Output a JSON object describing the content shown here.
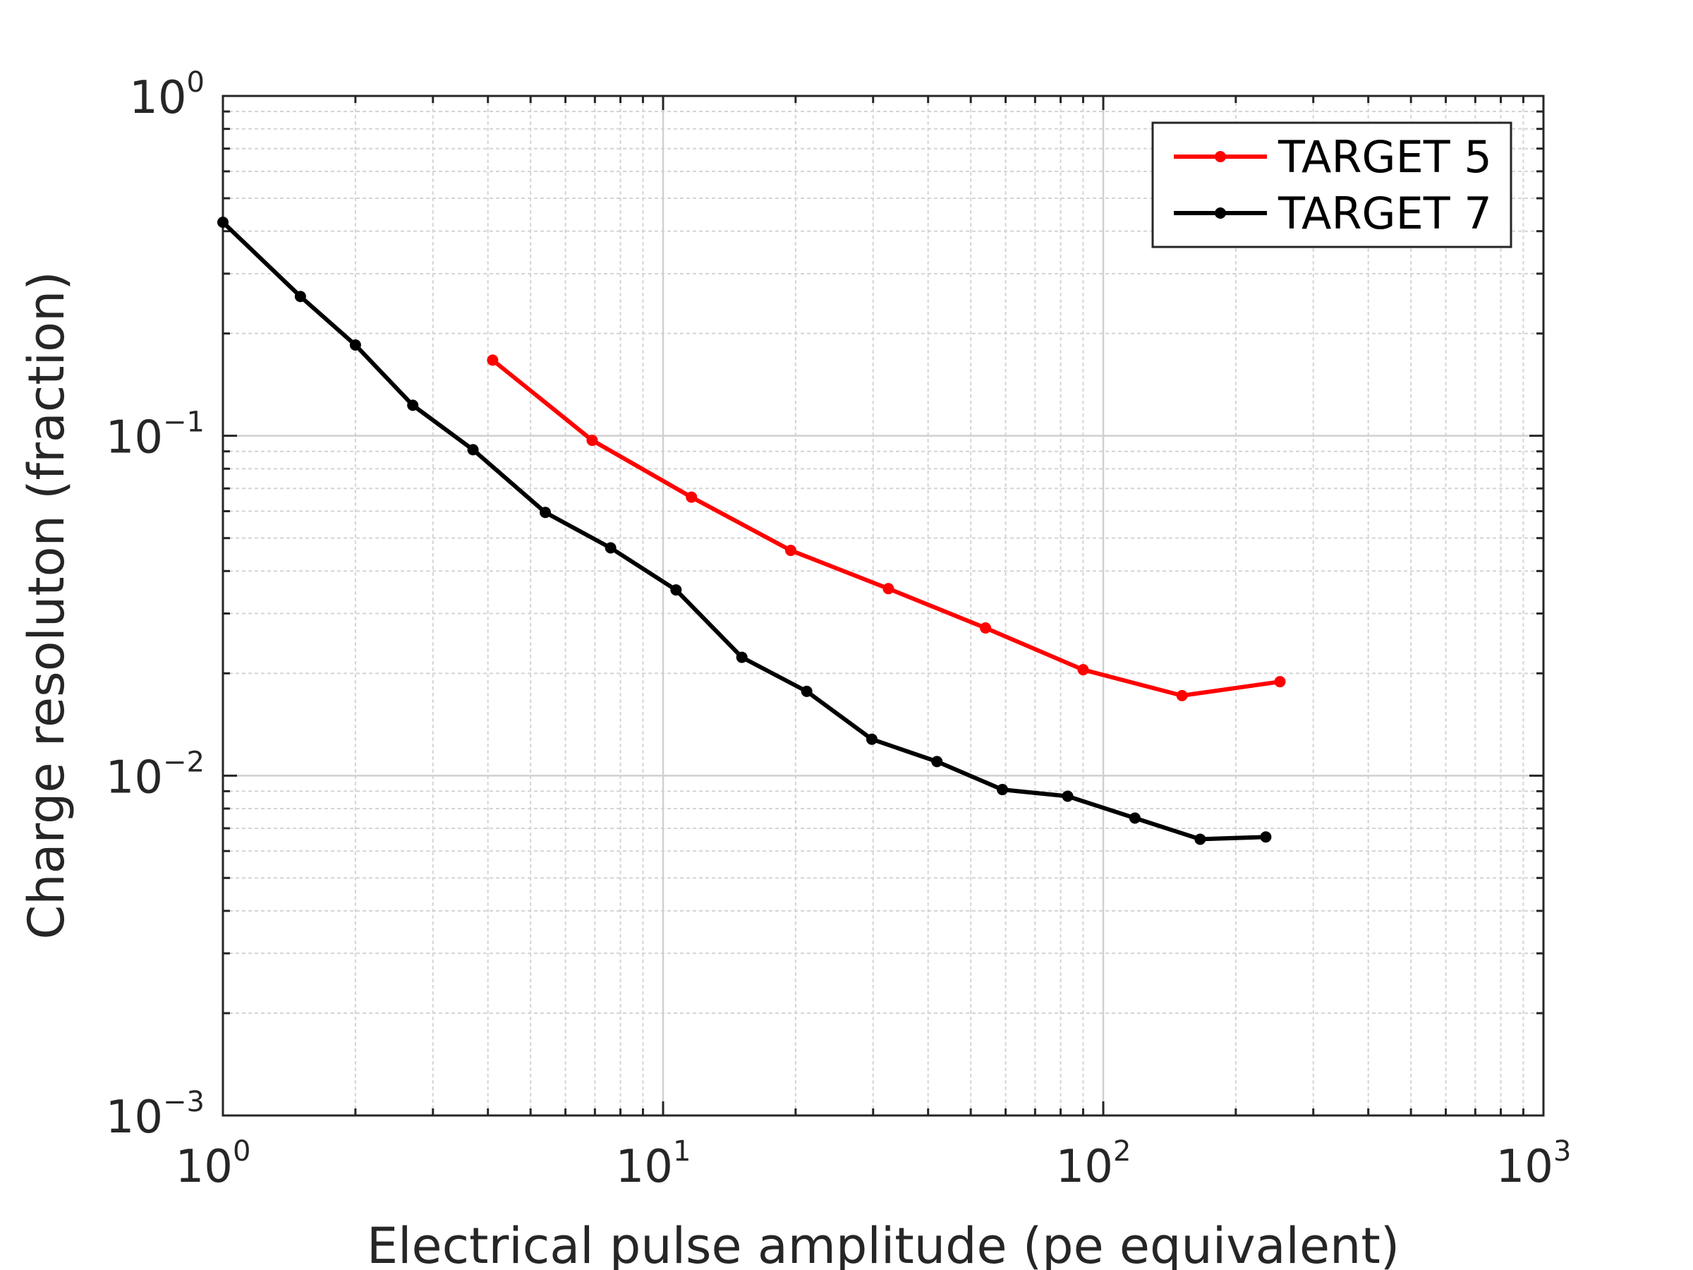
{
  "chart_data": {
    "type": "line",
    "title": "",
    "xlabel": "Electrical pulse amplitude (pe equivalent)",
    "ylabel": "Charge resoluton (fraction)",
    "x_scale": "log",
    "y_scale": "log",
    "xlim": [
      1,
      1000
    ],
    "ylim": [
      0.001,
      1
    ],
    "x_ticks": [
      {
        "base": "10",
        "exp": "0",
        "value": 1
      },
      {
        "base": "10",
        "exp": "1",
        "value": 10
      },
      {
        "base": "10",
        "exp": "2",
        "value": 100
      },
      {
        "base": "10",
        "exp": "3",
        "value": 1000
      }
    ],
    "y_ticks": [
      {
        "base": "10",
        "exp": "0",
        "value": 1
      },
      {
        "base": "10",
        "exp": "−1",
        "value": 0.1
      },
      {
        "base": "10",
        "exp": "−2",
        "value": 0.01
      },
      {
        "base": "10",
        "exp": "−3",
        "value": 0.001
      }
    ],
    "grid": true,
    "legend_position": "top-right",
    "series": [
      {
        "name": "TARGET 5",
        "color": "#ff0000",
        "points": [
          [
            4.1,
            0.167
          ],
          [
            6.9,
            0.097
          ],
          [
            11.6,
            0.066
          ],
          [
            19.5,
            0.046
          ],
          [
            32.5,
            0.0355
          ],
          [
            54,
            0.0272
          ],
          [
            90,
            0.0205
          ],
          [
            151,
            0.0172
          ],
          [
            252,
            0.0189
          ]
        ]
      },
      {
        "name": "TARGET 7",
        "color": "#000000",
        "points": [
          [
            1.0,
            0.425
          ],
          [
            1.5,
            0.257
          ],
          [
            2.0,
            0.185
          ],
          [
            2.7,
            0.123
          ],
          [
            3.7,
            0.091
          ],
          [
            5.4,
            0.0595
          ],
          [
            7.6,
            0.0468
          ],
          [
            10.7,
            0.0352
          ],
          [
            15.1,
            0.0223
          ],
          [
            21.2,
            0.0177
          ],
          [
            29.8,
            0.0128
          ],
          [
            41.9,
            0.011
          ],
          [
            59,
            0.0091
          ],
          [
            83,
            0.0087
          ],
          [
            118,
            0.0075
          ],
          [
            166,
            0.0065
          ],
          [
            234,
            0.0066
          ]
        ]
      }
    ]
  }
}
